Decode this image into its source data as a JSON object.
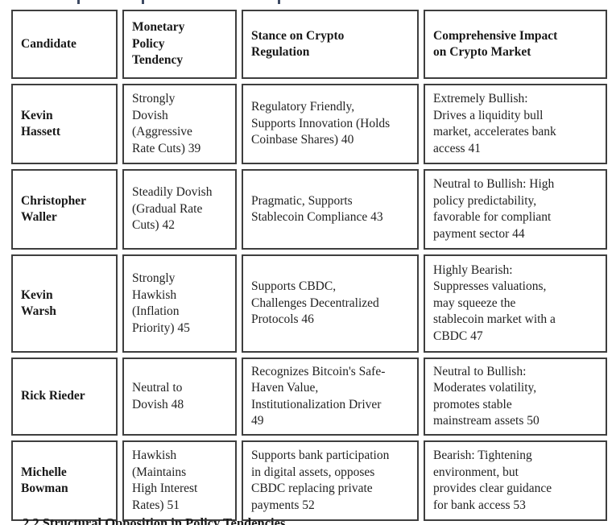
{
  "table": {
    "columns": [
      "Candidate",
      "Monetary\nPolicy\nTendency",
      "Stance on Crypto\nRegulation",
      "Comprehensive Impact\non Crypto Market"
    ],
    "rows": [
      [
        "Kevin\nHassett",
        "Strongly\nDovish\n(Aggressive\nRate Cuts) 39",
        "Regulatory Friendly,\nSupports Innovation (Holds\nCoinbase Shares) 40",
        "Extremely Bullish:\nDrives a liquidity bull\nmarket, accelerates bank\naccess 41"
      ],
      [
        "Christopher\nWaller",
        "Steadily Dovish\n(Gradual Rate\nCuts) 42",
        "Pragmatic, Supports\nStablecoin Compliance 43",
        "Neutral to Bullish: High\npolicy predictability,\nfavorable for compliant\npayment sector 44"
      ],
      [
        "Kevin\nWarsh",
        "Strongly\nHawkish\n(Inflation\nPriority) 45",
        "Supports CBDC,\nChallenges Decentralized\nProtocols 46",
        "Highly Bearish:\nSuppresses valuations,\nmay squeeze the\nstablecoin market with a\nCBDC 47"
      ],
      [
        "Rick Rieder",
        "Neutral to\nDovish 48",
        "Recognizes Bitcoin's Safe-\nHaven Value,\nInstitutionalization Driver\n49",
        "Neutral to Bullish:\nModerates volatility,\npromotes stable\nmainstream assets 50"
      ],
      [
        "Michelle\nBowman",
        "Hawkish\n(Maintains\nHigh Interest\nRates) 51",
        "Supports bank participation\nin digital assets, opposes\nCBDC replacing private\npayments 52",
        "Bearish: Tightening\nenvironment, but\nprovides clear guidance\nfor bank access 53"
      ]
    ]
  },
  "bottom_heading": "2.2 Structural Opposition in Policy Tendencies",
  "colors": {
    "border": "#3e3e3e",
    "text": "#222222",
    "background": "#ffffff"
  }
}
